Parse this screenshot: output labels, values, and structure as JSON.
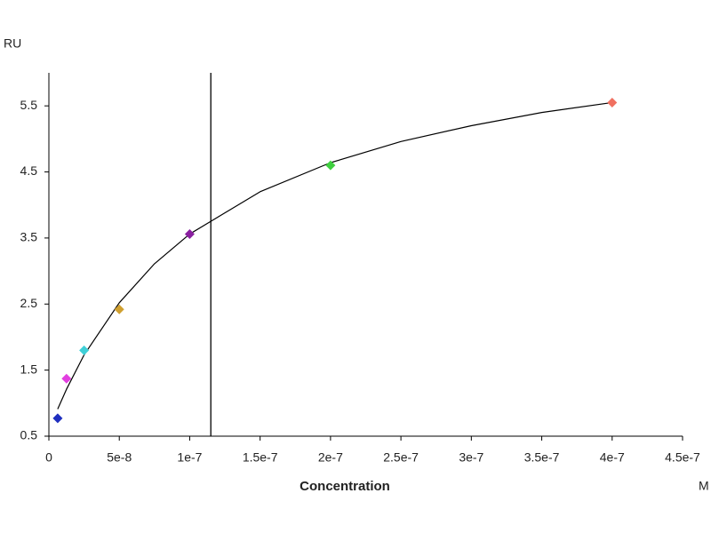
{
  "chart_data": {
    "type": "scatter",
    "y_label": "RU",
    "x_label": "Concentration",
    "x_unit": "M",
    "x": [
      6.25e-09,
      1.25e-08,
      2.5e-08,
      5e-08,
      1e-07,
      2e-07,
      4e-07
    ],
    "values": [
      0.77,
      1.37,
      1.8,
      2.42,
      3.56,
      4.6,
      5.55
    ],
    "colors": [
      "#1f2fbf",
      "#e23fe0",
      "#3fd0d8",
      "#d0a030",
      "#8a1fa0",
      "#3fcf3f",
      "#f07060"
    ],
    "fit": {
      "x": [
        6.25e-09,
        1.25e-08,
        2.5e-08,
        5e-08,
        7.5e-08,
        1e-07,
        1.5e-07,
        2e-07,
        2.5e-07,
        3e-07,
        3.5e-07,
        4e-07
      ],
      "values": [
        0.91,
        1.21,
        1.73,
        2.52,
        3.11,
        3.56,
        4.2,
        4.64,
        4.96,
        5.2,
        5.4,
        5.55
      ],
      "color": "#000000"
    },
    "reference_line": {
      "x": 1.15e-07,
      "color": "#000000"
    },
    "xlim": [
      0,
      4.5e-07
    ],
    "ylim": [
      0.5,
      6.0
    ],
    "xticks": [
      0,
      {
        "value": 5e-08,
        "label": "5e-8"
      },
      {
        "value": 1e-07,
        "label": "1e-7"
      },
      {
        "value": 1.5e-07,
        "label": "1.5e-7"
      },
      {
        "value": 2e-07,
        "label": "2e-7"
      },
      {
        "value": 2.5e-07,
        "label": "2.5e-7"
      },
      {
        "value": 3e-07,
        "label": "3e-7"
      },
      {
        "value": 3.5e-07,
        "label": "3.5e-7"
      },
      {
        "value": 4e-07,
        "label": "4e-7"
      },
      {
        "value": 4.5e-07,
        "label": "4.5e-7"
      }
    ],
    "yticks": [
      0.5,
      1.5,
      2.5,
      3.5,
      4.5,
      5.5
    ]
  }
}
